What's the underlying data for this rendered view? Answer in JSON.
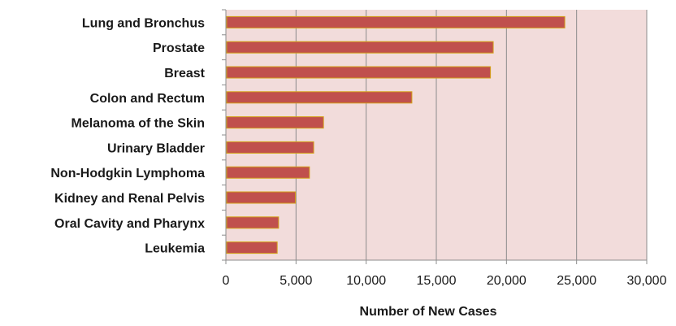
{
  "chart_data": {
    "type": "bar",
    "orientation": "horizontal",
    "categories": [
      "Lung and Bronchus",
      "Prostate",
      "Breast",
      "Colon and Rectum",
      "Melanoma of the Skin",
      "Urinary Bladder",
      "Non-Hodgkin Lymphoma",
      "Kidney and Renal Pelvis",
      "Oral Cavity and Pharynx",
      "Leukemia"
    ],
    "values": [
      24100,
      19000,
      18800,
      13200,
      6900,
      6200,
      5900,
      4900,
      3700,
      3600
    ],
    "xlabel": "Number of New Cases",
    "ylabel": "",
    "xlim": [
      0,
      30000
    ],
    "xticks": [
      0,
      5000,
      10000,
      15000,
      20000,
      25000,
      30000
    ],
    "xtick_labels": [
      "0",
      "5,000",
      "10,000",
      "15,000",
      "20,000",
      "25,000",
      "30,000"
    ],
    "grid": "vertical",
    "legend": "none"
  },
  "colors": {
    "plot_background": "#f2dcdb",
    "bar_fill": "#c0504d",
    "bar_border": "#d4a017",
    "gridline": "#8c8c8c",
    "axis": "#8c8c8c",
    "text": "#1a1a1a"
  }
}
